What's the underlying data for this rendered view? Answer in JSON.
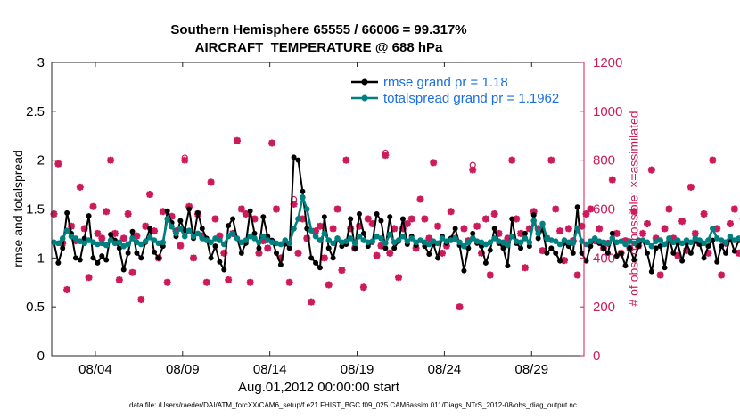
{
  "chart_data": {
    "type": "line",
    "title": "Southern Hemisphere 65555 / 66006 = 99.317%",
    "subtitle": "AIRCRAFT_TEMPERATURE @ 688 hPa",
    "xlabel": "Aug.01,2012 00:00:00 start",
    "ylabel_left": "rmse and totalspread",
    "ylabel_right": "# of obs: o=possible; ×=assimilated",
    "x_range_days": [
      1.5,
      32
    ],
    "ylim_left": [
      0,
      3
    ],
    "ylim_right": [
      0,
      1200
    ],
    "x_ticks": [
      {
        "day": 4,
        "label": "08/04"
      },
      {
        "day": 9,
        "label": "08/09"
      },
      {
        "day": 14,
        "label": "08/14"
      },
      {
        "day": 19,
        "label": "08/19"
      },
      {
        "day": 24,
        "label": "08/24"
      },
      {
        "day": 29,
        "label": "08/29"
      }
    ],
    "y_ticks_left": [
      "0",
      "0.5",
      "1",
      "1.5",
      "2",
      "2.5",
      "3"
    ],
    "y_ticks_right": [
      "0",
      "200",
      "400",
      "600",
      "800",
      "1000",
      "1200"
    ],
    "legend_position": "top-right",
    "series": [
      {
        "name": "rmse grand pr = 1.18",
        "color": "#000000",
        "x_start_day": 1.625,
        "x_step_days": 0.25,
        "values": [
          1.16,
          0.95,
          1.1,
          1.46,
          1.25,
          1.0,
          0.98,
          1.2,
          1.43,
          1.0,
          0.95,
          1.02,
          0.98,
          1.24,
          1.18,
          1.1,
          0.88,
          1.05,
          1.27,
          1.05,
          1.0,
          1.16,
          1.3,
          1.06,
          1.0,
          1.12,
          1.48,
          1.36,
          1.22,
          1.38,
          1.28,
          1.5,
          1.2,
          1.46,
          1.3,
          1.2,
          1.0,
          1.12,
          0.96,
          0.88,
          1.33,
          1.4,
          1.2,
          1.05,
          1.15,
          1.48,
          1.25,
          1.1,
          1.42,
          1.22,
          1.18,
          1.05,
          0.93,
          1.15,
          1.1,
          2.03,
          2.0,
          1.68,
          1.3,
          1.0,
          0.95,
          0.9,
          1.42,
          1.1,
          1.0,
          1.2,
          1.12,
          1.14,
          1.4,
          1.1,
          1.45,
          1.25,
          1.12,
          1.16,
          1.45,
          1.38,
          1.1,
          1.42,
          1.1,
          1.17,
          1.4,
          1.14,
          1.22,
          1.13,
          1.18,
          1.12,
          1.04,
          1.14,
          1.0,
          1.22,
          1.15,
          1.2,
          1.3,
          1.13,
          0.87,
          1.1,
          1.25,
          1.15,
          1.12,
          0.95,
          1.08,
          1.3,
          1.15,
          1.1,
          0.92,
          1.4,
          1.15,
          1.1,
          1.25,
          1.12,
          1.44,
          1.2,
          1.3,
          1.05,
          1.1,
          1.05,
          0.97,
          1.15,
          1.12,
          1.05,
          1.52,
          1.05,
          0.97,
          1.12,
          1.2,
          1.15,
          1.1,
          1.05,
          1.25,
          1.02,
          1.05,
          0.92,
          1.1,
          0.98,
          1.12,
          1.18,
          1.05,
          0.86,
          1.1,
          1.12,
          0.9,
          1.2,
          1.05,
          1.15,
          0.97,
          1.15,
          1.05,
          1.17,
          1.14,
          1.0,
          1.12,
          1.18,
          0.96,
          1.12,
          1.05,
          1.2,
          1.07,
          1.18
        ]
      },
      {
        "name": "totalspread grand pr = 1.1962",
        "color": "#008080",
        "x_start_day": 1.625,
        "x_step_days": 0.25,
        "values": [
          1.16,
          1.15,
          1.2,
          1.28,
          1.22,
          1.2,
          1.17,
          1.15,
          1.18,
          1.16,
          1.14,
          1.15,
          1.13,
          1.18,
          1.15,
          1.16,
          1.12,
          1.14,
          1.2,
          1.16,
          1.14,
          1.17,
          1.21,
          1.18,
          1.15,
          1.16,
          1.4,
          1.32,
          1.25,
          1.3,
          1.22,
          1.28,
          1.22,
          1.25,
          1.2,
          1.18,
          1.16,
          1.2,
          1.18,
          1.14,
          1.22,
          1.25,
          1.2,
          1.16,
          1.18,
          1.22,
          1.2,
          1.16,
          1.22,
          1.18,
          1.16,
          1.15,
          1.14,
          1.18,
          1.15,
          1.3,
          1.4,
          1.62,
          1.5,
          1.28,
          1.22,
          1.18,
          1.25,
          1.18,
          1.15,
          1.2,
          1.16,
          1.17,
          1.2,
          1.15,
          1.22,
          1.18,
          1.16,
          1.17,
          1.22,
          1.2,
          1.15,
          1.24,
          1.16,
          1.18,
          1.22,
          1.17,
          1.2,
          1.16,
          1.18,
          1.16,
          1.14,
          1.17,
          1.15,
          1.2,
          1.17,
          1.18,
          1.2,
          1.16,
          1.12,
          1.16,
          1.2,
          1.17,
          1.16,
          1.14,
          1.16,
          1.2,
          1.17,
          1.16,
          1.13,
          1.22,
          1.17,
          1.16,
          1.2,
          1.16,
          1.38,
          1.25,
          1.35,
          1.2,
          1.18,
          1.17,
          1.14,
          1.18,
          1.16,
          1.15,
          1.3,
          1.17,
          1.14,
          1.17,
          1.2,
          1.17,
          1.16,
          1.15,
          1.2,
          1.16,
          1.17,
          1.14,
          1.17,
          1.15,
          1.18,
          1.18,
          1.16,
          1.12,
          1.17,
          1.18,
          1.14,
          1.2,
          1.16,
          1.18,
          1.15,
          1.18,
          1.16,
          1.2,
          1.18,
          1.15,
          1.18,
          1.3,
          1.2,
          1.18,
          1.16,
          1.22,
          1.18,
          1.2
        ]
      },
      {
        "name": "# of obs assimilated",
        "color": "#cc1a5a",
        "marker": "x",
        "axis": "right",
        "x_start_day": 1.625,
        "x_step_days": 0.25,
        "values": [
          580,
          785,
          460,
          270,
          530,
          470,
          690,
          520,
          320,
          610,
          500,
          480,
          590,
          800,
          500,
          310,
          480,
          580,
          340,
          490,
          230,
          530,
          660,
          510,
          400,
          590,
          300,
          570,
          510,
          450,
          800,
          610,
          400,
          580,
          490,
          300,
          710,
          560,
          490,
          420,
          310,
          500,
          880,
          600,
          580,
          300,
          560,
          420,
          470,
          440,
          870,
          600,
          400,
          460,
          300,
          620,
          420,
          560,
          480,
          220,
          510,
          530,
          400,
          290,
          520,
          600,
          350,
          800,
          520,
          440,
          530,
          280,
          560,
          540,
          410,
          450,
          820,
          420,
          520,
          320,
          520,
          540,
          560,
          440,
          640,
          560,
          480,
          790,
          530,
          420,
          450,
          590,
          480,
          200,
          520,
          470,
          760,
          530,
          420,
          560,
          330,
          580,
          500,
          460,
          480,
          800,
          560,
          500,
          360,
          520,
          590,
          520,
          430,
          480,
          800,
          600,
          510,
          390,
          520,
          470,
          330,
          530,
          580,
          600,
          470,
          520,
          440,
          460,
          720,
          500,
          420,
          470,
          440,
          590,
          450,
          500,
          540,
          760,
          480,
          330,
          520,
          600,
          480,
          410,
          550,
          430,
          690,
          500,
          460,
          580,
          420,
          800,
          520,
          330,
          460,
          540,
          600,
          420,
          560,
          870
        ]
      },
      {
        "name": "# of obs possible",
        "color": "#cc1a5a",
        "marker": "o",
        "axis": "right",
        "x_start_day": 1.625,
        "x_step_days": 0.25,
        "values": [
          580,
          785,
          460,
          270,
          530,
          470,
          690,
          520,
          320,
          610,
          500,
          480,
          590,
          800,
          500,
          310,
          480,
          580,
          340,
          490,
          230,
          530,
          660,
          510,
          400,
          590,
          300,
          570,
          510,
          450,
          810,
          610,
          400,
          580,
          490,
          300,
          710,
          560,
          490,
          420,
          310,
          500,
          880,
          600,
          580,
          300,
          560,
          420,
          470,
          440,
          870,
          600,
          400,
          460,
          300,
          640,
          420,
          560,
          480,
          220,
          510,
          530,
          400,
          290,
          520,
          600,
          350,
          800,
          520,
          440,
          530,
          280,
          560,
          540,
          410,
          450,
          830,
          420,
          520,
          320,
          520,
          540,
          560,
          440,
          640,
          560,
          480,
          790,
          530,
          420,
          450,
          590,
          480,
          200,
          520,
          470,
          780,
          530,
          420,
          560,
          330,
          580,
          500,
          460,
          480,
          800,
          560,
          500,
          360,
          520,
          590,
          520,
          430,
          480,
          800,
          600,
          510,
          390,
          520,
          470,
          330,
          530,
          580,
          600,
          470,
          520,
          440,
          460,
          720,
          500,
          420,
          470,
          440,
          590,
          450,
          500,
          540,
          760,
          480,
          330,
          520,
          600,
          480,
          410,
          550,
          430,
          690,
          500,
          460,
          580,
          420,
          800,
          520,
          330,
          460,
          540,
          600,
          420,
          560,
          870
        ]
      }
    ],
    "footer": "data file: /Users/raeder/DAI/ATM_forcXX/CAM6_setup/f.e21.FHIST_BGC.f09_025.CAM6assim.011/Diags_NTrS_2012-08/obs_diag_output.nc"
  }
}
